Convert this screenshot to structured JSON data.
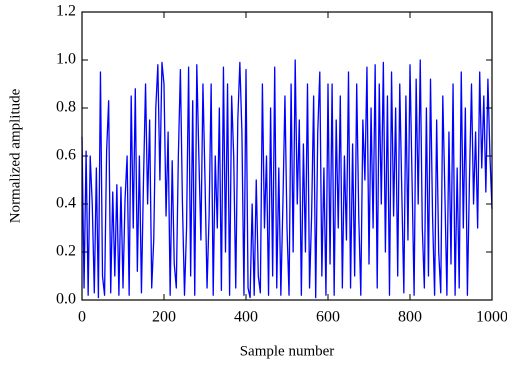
{
  "chart_data": {
    "type": "line",
    "xlabel": "Sample number",
    "ylabel": "Normalized amplitude",
    "color": "#0000ff",
    "xlim": [
      0,
      1000
    ],
    "ylim": [
      0,
      1.2
    ],
    "xticks": [
      0,
      200,
      400,
      600,
      800,
      1000
    ],
    "yticks": [
      {
        "value": 0,
        "label": "0.0"
      },
      0.2,
      0.4,
      0.6,
      0.8,
      {
        "value": 1,
        "label": "1.0"
      },
      1.2
    ],
    "x": [
      0,
      5,
      10,
      15,
      20,
      25,
      30,
      35,
      40,
      45,
      50,
      55,
      60,
      65,
      70,
      75,
      80,
      85,
      90,
      95,
      100,
      105,
      110,
      115,
      120,
      125,
      130,
      135,
      140,
      145,
      150,
      155,
      160,
      165,
      170,
      175,
      180,
      185,
      190,
      195,
      200,
      205,
      210,
      215,
      220,
      225,
      230,
      235,
      240,
      245,
      250,
      255,
      260,
      265,
      270,
      275,
      280,
      285,
      290,
      295,
      300,
      305,
      310,
      315,
      320,
      325,
      330,
      335,
      340,
      345,
      350,
      355,
      360,
      365,
      370,
      375,
      380,
      385,
      390,
      395,
      400,
      405,
      410,
      415,
      420,
      425,
      430,
      435,
      440,
      445,
      450,
      455,
      460,
      465,
      470,
      475,
      480,
      485,
      490,
      495,
      500,
      505,
      510,
      515,
      520,
      525,
      530,
      535,
      540,
      545,
      550,
      555,
      560,
      565,
      570,
      575,
      580,
      585,
      590,
      595,
      600,
      605,
      610,
      615,
      620,
      625,
      630,
      635,
      640,
      645,
      650,
      655,
      660,
      665,
      670,
      675,
      680,
      685,
      690,
      695,
      700,
      705,
      710,
      715,
      720,
      725,
      730,
      735,
      740,
      745,
      750,
      755,
      760,
      765,
      770,
      775,
      780,
      785,
      790,
      795,
      800,
      805,
      810,
      815,
      820,
      825,
      830,
      835,
      840,
      845,
      850,
      855,
      860,
      865,
      870,
      875,
      880,
      885,
      890,
      895,
      900,
      905,
      910,
      915,
      920,
      925,
      930,
      935,
      940,
      945,
      950,
      955,
      960,
      965,
      970,
      975,
      980,
      985,
      990,
      995,
      1000
    ],
    "values": [
      0.68,
      0.05,
      0.62,
      0.02,
      0.6,
      0.4,
      0.03,
      0.55,
      0.01,
      0.95,
      0.1,
      0.02,
      0.62,
      0.83,
      0.03,
      0.45,
      0.1,
      0.48,
      0.02,
      0.47,
      0.05,
      0.42,
      0.6,
      0.02,
      0.85,
      0.3,
      0.88,
      0.12,
      0.6,
      0.03,
      0.5,
      0.9,
      0.4,
      0.75,
      0.05,
      0.25,
      0.8,
      0.98,
      0.5,
      0.99,
      0.9,
      0.35,
      0.7,
      0.02,
      0.58,
      0.15,
      0.05,
      0.6,
      0.96,
      0.4,
      0.02,
      0.3,
      0.97,
      0.1,
      0.83,
      0.02,
      0.98,
      0.6,
      0.25,
      0.9,
      0.5,
      0.05,
      0.35,
      0.9,
      0.02,
      0.6,
      0.3,
      0.8,
      0.04,
      0.97,
      0.2,
      0.9,
      0.02,
      0.85,
      0.6,
      0.05,
      0.75,
      0.99,
      0.7,
      0.02,
      0.96,
      0.05,
      0.01,
      0.4,
      0.02,
      0.5,
      0.1,
      0.03,
      0.9,
      0.3,
      0.6,
      0.02,
      0.8,
      0.1,
      0.97,
      0.05,
      0.55,
      0.02,
      0.4,
      0.85,
      0.3,
      0.02,
      0.9,
      0.2,
      1.0,
      0.4,
      0.75,
      0.02,
      0.65,
      0.2,
      0.9,
      0.05,
      0.35,
      0.85,
      0.01,
      0.7,
      0.95,
      0.1,
      0.55,
      0.02,
      0.9,
      0.15,
      0.9,
      0.02,
      0.75,
      0.3,
      0.85,
      0.05,
      0.6,
      0.25,
      0.95,
      0.05,
      0.65,
      0.1,
      0.9,
      0.35,
      0.02,
      0.75,
      0.5,
      0.97,
      0.15,
      0.8,
      0.3,
      0.98,
      0.05,
      0.9,
      0.4,
      0.99,
      0.2,
      0.85,
      0.02,
      0.95,
      0.35,
      0.8,
      0.1,
      0.9,
      0.45,
      0.03,
      0.85,
      0.25,
      0.98,
      0.5,
      0.02,
      0.92,
      0.4,
      1.0,
      0.3,
      0.05,
      0.8,
      0.1,
      0.92,
      0.35,
      0.02,
      0.75,
      0.2,
      0.03,
      0.85,
      0.45,
      0.02,
      0.7,
      0.15,
      0.9,
      0.02,
      0.55,
      0.05,
      0.95,
      0.3,
      0.8,
      0.02,
      0.5,
      0.9,
      0.4,
      0.7,
      0.3,
      0.95,
      0.55,
      0.85,
      0.45,
      0.92,
      0.6,
      0.38
    ]
  }
}
